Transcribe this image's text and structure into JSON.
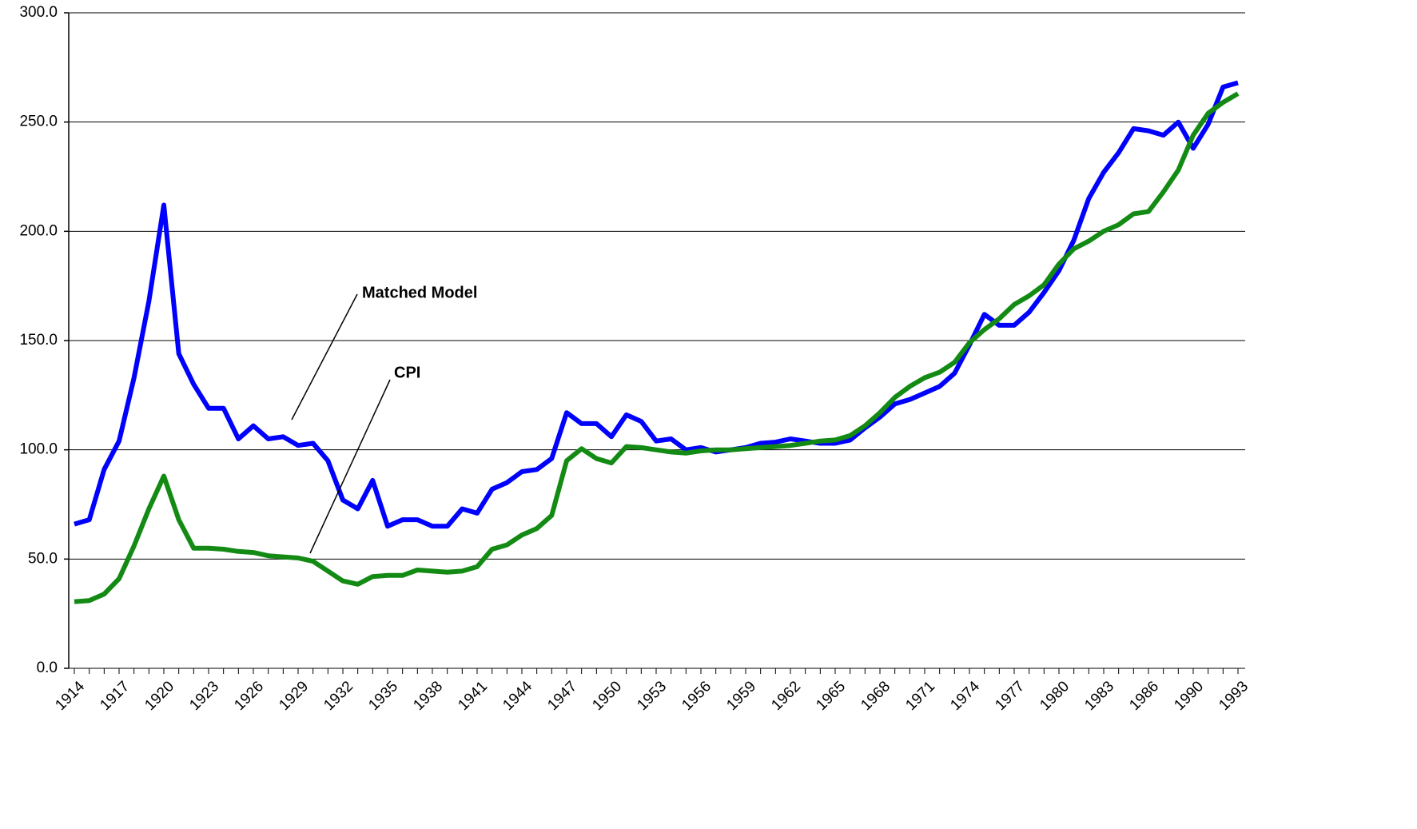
{
  "chart_data": {
    "type": "line",
    "categories": [
      "1914",
      null,
      null,
      "1917",
      null,
      null,
      "1920",
      null,
      null,
      "1923",
      null,
      null,
      "1926",
      null,
      null,
      "1929",
      null,
      null,
      "1932",
      null,
      null,
      "1935",
      null,
      null,
      "1938",
      null,
      null,
      "1941",
      null,
      null,
      "1944",
      null,
      null,
      "1947",
      null,
      null,
      "1950",
      null,
      null,
      "1953",
      null,
      null,
      "1956",
      null,
      null,
      "1959",
      null,
      null,
      "1962",
      null,
      null,
      "1965",
      null,
      null,
      "1968",
      null,
      null,
      "1971",
      null,
      null,
      "1974",
      null,
      null,
      "1977",
      null,
      null,
      "1980",
      null,
      null,
      "1983",
      null,
      null,
      "1986",
      null,
      null,
      "1990",
      null,
      null,
      "1993"
    ],
    "series": [
      {
        "name": "Matched Model",
        "color": "#0000ff",
        "values": [
          66,
          68,
          91,
          104,
          133,
          168,
          212,
          144,
          130,
          119,
          119,
          105,
          111,
          105,
          106,
          102,
          103,
          95,
          77,
          73,
          86,
          65,
          68,
          68,
          65,
          65,
          73,
          71,
          82,
          85,
          90,
          91,
          96,
          117,
          112,
          112,
          106,
          116,
          113,
          104,
          105,
          100,
          101,
          99,
          100,
          101,
          103,
          103.5,
          105,
          104,
          103,
          103,
          104.5,
          110,
          115,
          121,
          123,
          126,
          129,
          135,
          148,
          162,
          157,
          157,
          163,
          172,
          182,
          196,
          215,
          227,
          236,
          247,
          246,
          244,
          250,
          238,
          249,
          266,
          268
        ]
      },
      {
        "name": "CPI",
        "color": "#138a13",
        "values": [
          30.5,
          31,
          34,
          41,
          56,
          73,
          88,
          68,
          55,
          55,
          54.5,
          53.5,
          53,
          51.5,
          51,
          50.5,
          49,
          44.5,
          40,
          38.5,
          42,
          42.5,
          42.5,
          45,
          44.5,
          44,
          44.5,
          46.5,
          54.5,
          56.5,
          61,
          64,
          70,
          95,
          100.5,
          96,
          94,
          101.5,
          101,
          100,
          99,
          98.5,
          99.5,
          100,
          100,
          100.5,
          101,
          101.5,
          102,
          103,
          104,
          104.5,
          106.5,
          111,
          117,
          124,
          129,
          133,
          135.5,
          140,
          149,
          155,
          160,
          166.5,
          170.5,
          175.5,
          185,
          192,
          195.5,
          200,
          203,
          208,
          209,
          218,
          228,
          244,
          254,
          259,
          263
        ]
      }
    ],
    "annotations": [
      "Matched Model",
      "CPI"
    ],
    "ylim": [
      0,
      300
    ],
    "yticks": [
      {
        "value": 0,
        "label": "0.0"
      },
      {
        "value": 50,
        "label": "50.0"
      },
      {
        "value": 100,
        "label": "100.0"
      },
      {
        "value": 150,
        "label": "150.0"
      },
      {
        "value": 200,
        "label": "200.0"
      },
      {
        "value": 250,
        "label": "250.0"
      },
      {
        "value": 300,
        "label": "300.0"
      }
    ],
    "grid": true
  }
}
